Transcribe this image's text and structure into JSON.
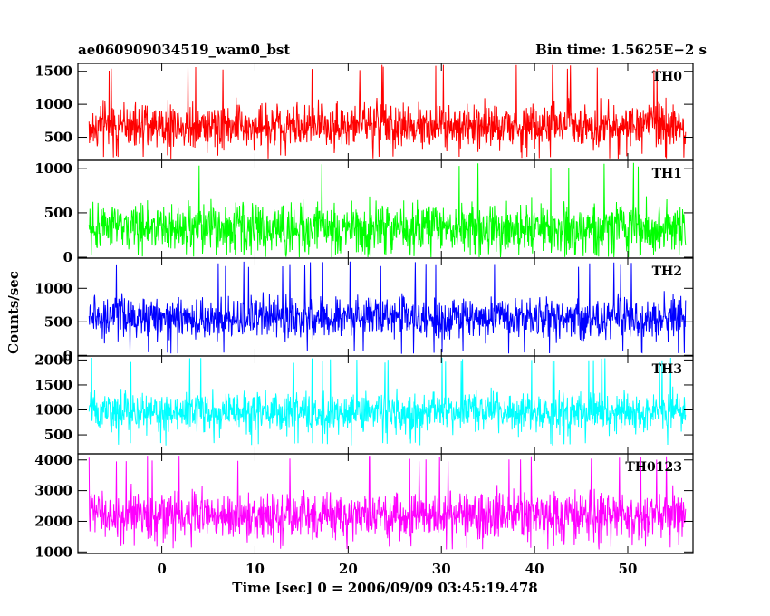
{
  "chart_data": {
    "type": "line",
    "title_left": "ae060909034519_wam0_bst",
    "title_right": "Bin time: 1.5625E−2 s",
    "xlabel": "Time [sec] 0 = 2006/09/09 03:45:19.478",
    "ylabel": "Counts/sec",
    "xlim": [
      -9,
      57
    ],
    "data_xrange": [
      -7.8,
      56.2
    ],
    "x_ticks": [
      0,
      10,
      20,
      30,
      40,
      50
    ],
    "x_tick_labels": [
      "0",
      "10",
      "20",
      "30",
      "40",
      "50"
    ],
    "grid": false,
    "panels": [
      {
        "name": "TH0",
        "color": "#ff0000",
        "ylim": [
          150,
          1620
        ],
        "y_ticks": [
          500,
          1000,
          1500
        ],
        "y_tick_labels": [
          "500",
          "1000",
          "1500"
        ],
        "mean": 680,
        "spread": 380,
        "min": 170,
        "max": 1600
      },
      {
        "name": "TH1",
        "color": "#00ff00",
        "ylim": [
          -10,
          1090
        ],
        "y_ticks": [
          0,
          500,
          1000
        ],
        "y_tick_labels": [
          "0",
          "500",
          "1000"
        ],
        "mean": 330,
        "spread": 300,
        "min": 0,
        "max": 1070
      },
      {
        "name": "TH2",
        "color": "#0000ff",
        "ylim": [
          -10,
          1450
        ],
        "y_ticks": [
          0,
          500,
          1000
        ],
        "y_tick_labels": [
          "0",
          "500",
          "1000"
        ],
        "mean": 560,
        "spread": 330,
        "min": 20,
        "max": 1400
      },
      {
        "name": "TH3",
        "color": "#00ffff",
        "ylim": [
          120,
          2080
        ],
        "y_ticks": [
          500,
          1000,
          1500,
          2000
        ],
        "y_tick_labels": [
          "500",
          "1000",
          "1500",
          "2000"
        ],
        "mean": 950,
        "spread": 430,
        "min": 280,
        "max": 2050
      },
      {
        "name": "TH0123",
        "color": "#ff00ff",
        "ylim": [
          950,
          4200
        ],
        "y_ticks": [
          1000,
          2000,
          3000,
          4000
        ],
        "y_tick_labels": [
          "1000",
          "2000",
          "3000",
          "4000"
        ],
        "mean": 2200,
        "spread": 850,
        "min": 1080,
        "max": 4150
      }
    ]
  }
}
